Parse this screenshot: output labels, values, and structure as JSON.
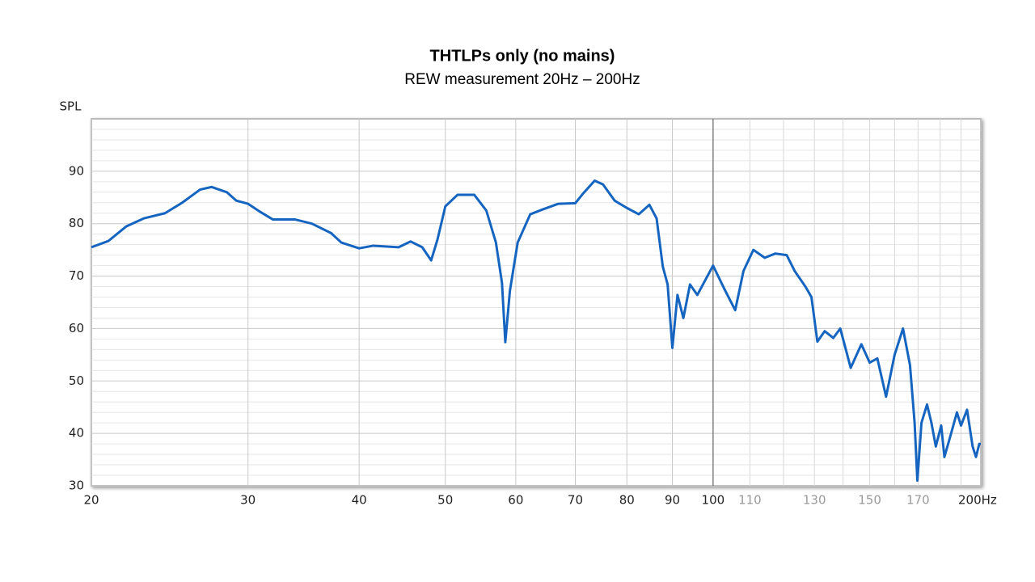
{
  "chart_data": {
    "type": "line",
    "title": "THTLPs only (no mains)",
    "subtitle": "REW measurement 20Hz – 200Hz",
    "y_label": "SPL",
    "xscale": "log",
    "grid": true,
    "xlim": [
      20,
      200
    ],
    "ylim": [
      30,
      100
    ],
    "xticks": [
      20,
      30,
      40,
      50,
      60,
      70,
      80,
      90,
      100,
      {
        "value": 200,
        "label": "200Hz"
      }
    ],
    "xticks_secondary": [
      110,
      130,
      150,
      170
    ],
    "xminor": [
      120,
      140,
      160,
      180,
      190
    ],
    "yticks": [
      30,
      40,
      50,
      60,
      70,
      80,
      90
    ],
    "yminor": [
      32,
      34,
      36,
      38,
      42,
      44,
      46,
      48,
      52,
      54,
      56,
      58,
      62,
      64,
      66,
      68,
      72,
      74,
      76,
      78,
      82,
      84,
      86,
      88,
      92,
      94,
      96,
      98
    ],
    "series": [
      {
        "color": "#1565c0",
        "x": [
          20,
          20.9,
          21.9,
          22.9,
          24.2,
          25.3,
          26.5,
          27.3,
          28.4,
          29.1,
          30,
          31,
          32,
          33.9,
          35.4,
          37.2,
          38.2,
          40,
          41.5,
          44.3,
          45.7,
          47.1,
          48.2,
          49,
          50,
          51.6,
          53.9,
          55.6,
          57,
          57.9,
          58.4,
          59.1,
          60.3,
          62.3,
          64.3,
          67,
          70,
          71.3,
          73.6,
          75.2,
          77.5,
          80,
          82.5,
          84.8,
          86.4,
          87.8,
          88.9,
          90,
          91.2,
          92.6,
          94.2,
          96,
          100,
          103,
          105.9,
          108.2,
          111,
          114.3,
          117.5,
          121,
          123.5,
          127,
          129,
          131,
          133.5,
          136.5,
          139,
          142.8,
          146.8,
          150,
          153,
          156.5,
          160,
          163.5,
          166.5,
          168.5,
          169.7,
          171.5,
          174,
          176,
          178,
          180.5,
          182,
          184.5,
          188,
          190,
          193,
          195.8,
          197.5,
          199.2,
          200
        ],
        "values": [
          75.5,
          76.7,
          79.5,
          81,
          82,
          84,
          86.5,
          87,
          86,
          84.4,
          83.8,
          82.2,
          80.8,
          80.8,
          80,
          78.2,
          76.4,
          75.3,
          75.8,
          75.5,
          76.6,
          75.5,
          73,
          77,
          83.3,
          85.5,
          85.5,
          82.5,
          76.4,
          68.7,
          57.4,
          67.2,
          76.4,
          81.8,
          82.7,
          83.8,
          83.9,
          85.6,
          88.2,
          87.5,
          84.4,
          83,
          81.8,
          83.6,
          81,
          71.8,
          68.4,
          56.3,
          66.4,
          62,
          68.4,
          66.4,
          72,
          67.5,
          63.5,
          71,
          75,
          73.5,
          74.3,
          74,
          71,
          68,
          66,
          57.5,
          59.5,
          58.2,
          60,
          52.5,
          57,
          53.5,
          54.3,
          47,
          55,
          60,
          53,
          42,
          31,
          42,
          45.5,
          42,
          37.5,
          41.5,
          35.5,
          39,
          44,
          41.5,
          44.5,
          37.5,
          35.5,
          38,
          38
        ]
      }
    ]
  }
}
